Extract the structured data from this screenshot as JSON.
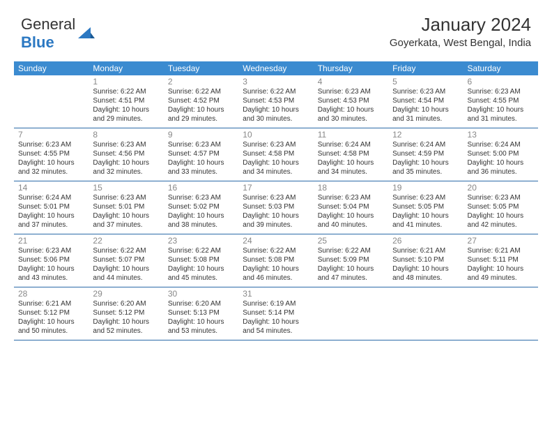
{
  "logo": {
    "text1": "General",
    "text2": "Blue"
  },
  "title": "January 2024",
  "location": "Goyerkata, West Bengal, India",
  "colors": {
    "header_bg": "#3b8bd0",
    "header_fg": "#ffffff",
    "row_border": "#2b6aa8",
    "daynum": "#888888",
    "body_text": "#333333",
    "logo_blue": "#2b78c2",
    "background": "#ffffff"
  },
  "weekdays": [
    "Sunday",
    "Monday",
    "Tuesday",
    "Wednesday",
    "Thursday",
    "Friday",
    "Saturday"
  ],
  "weeks": [
    [
      null,
      {
        "n": "1",
        "sr": "Sunrise: 6:22 AM",
        "ss": "Sunset: 4:51 PM",
        "dl": "Daylight: 10 hours and 29 minutes."
      },
      {
        "n": "2",
        "sr": "Sunrise: 6:22 AM",
        "ss": "Sunset: 4:52 PM",
        "dl": "Daylight: 10 hours and 29 minutes."
      },
      {
        "n": "3",
        "sr": "Sunrise: 6:22 AM",
        "ss": "Sunset: 4:53 PM",
        "dl": "Daylight: 10 hours and 30 minutes."
      },
      {
        "n": "4",
        "sr": "Sunrise: 6:23 AM",
        "ss": "Sunset: 4:53 PM",
        "dl": "Daylight: 10 hours and 30 minutes."
      },
      {
        "n": "5",
        "sr": "Sunrise: 6:23 AM",
        "ss": "Sunset: 4:54 PM",
        "dl": "Daylight: 10 hours and 31 minutes."
      },
      {
        "n": "6",
        "sr": "Sunrise: 6:23 AM",
        "ss": "Sunset: 4:55 PM",
        "dl": "Daylight: 10 hours and 31 minutes."
      }
    ],
    [
      {
        "n": "7",
        "sr": "Sunrise: 6:23 AM",
        "ss": "Sunset: 4:55 PM",
        "dl": "Daylight: 10 hours and 32 minutes."
      },
      {
        "n": "8",
        "sr": "Sunrise: 6:23 AM",
        "ss": "Sunset: 4:56 PM",
        "dl": "Daylight: 10 hours and 32 minutes."
      },
      {
        "n": "9",
        "sr": "Sunrise: 6:23 AM",
        "ss": "Sunset: 4:57 PM",
        "dl": "Daylight: 10 hours and 33 minutes."
      },
      {
        "n": "10",
        "sr": "Sunrise: 6:23 AM",
        "ss": "Sunset: 4:58 PM",
        "dl": "Daylight: 10 hours and 34 minutes."
      },
      {
        "n": "11",
        "sr": "Sunrise: 6:24 AM",
        "ss": "Sunset: 4:58 PM",
        "dl": "Daylight: 10 hours and 34 minutes."
      },
      {
        "n": "12",
        "sr": "Sunrise: 6:24 AM",
        "ss": "Sunset: 4:59 PM",
        "dl": "Daylight: 10 hours and 35 minutes."
      },
      {
        "n": "13",
        "sr": "Sunrise: 6:24 AM",
        "ss": "Sunset: 5:00 PM",
        "dl": "Daylight: 10 hours and 36 minutes."
      }
    ],
    [
      {
        "n": "14",
        "sr": "Sunrise: 6:24 AM",
        "ss": "Sunset: 5:01 PM",
        "dl": "Daylight: 10 hours and 37 minutes."
      },
      {
        "n": "15",
        "sr": "Sunrise: 6:23 AM",
        "ss": "Sunset: 5:01 PM",
        "dl": "Daylight: 10 hours and 37 minutes."
      },
      {
        "n": "16",
        "sr": "Sunrise: 6:23 AM",
        "ss": "Sunset: 5:02 PM",
        "dl": "Daylight: 10 hours and 38 minutes."
      },
      {
        "n": "17",
        "sr": "Sunrise: 6:23 AM",
        "ss": "Sunset: 5:03 PM",
        "dl": "Daylight: 10 hours and 39 minutes."
      },
      {
        "n": "18",
        "sr": "Sunrise: 6:23 AM",
        "ss": "Sunset: 5:04 PM",
        "dl": "Daylight: 10 hours and 40 minutes."
      },
      {
        "n": "19",
        "sr": "Sunrise: 6:23 AM",
        "ss": "Sunset: 5:05 PM",
        "dl": "Daylight: 10 hours and 41 minutes."
      },
      {
        "n": "20",
        "sr": "Sunrise: 6:23 AM",
        "ss": "Sunset: 5:05 PM",
        "dl": "Daylight: 10 hours and 42 minutes."
      }
    ],
    [
      {
        "n": "21",
        "sr": "Sunrise: 6:23 AM",
        "ss": "Sunset: 5:06 PM",
        "dl": "Daylight: 10 hours and 43 minutes."
      },
      {
        "n": "22",
        "sr": "Sunrise: 6:22 AM",
        "ss": "Sunset: 5:07 PM",
        "dl": "Daylight: 10 hours and 44 minutes."
      },
      {
        "n": "23",
        "sr": "Sunrise: 6:22 AM",
        "ss": "Sunset: 5:08 PM",
        "dl": "Daylight: 10 hours and 45 minutes."
      },
      {
        "n": "24",
        "sr": "Sunrise: 6:22 AM",
        "ss": "Sunset: 5:08 PM",
        "dl": "Daylight: 10 hours and 46 minutes."
      },
      {
        "n": "25",
        "sr": "Sunrise: 6:22 AM",
        "ss": "Sunset: 5:09 PM",
        "dl": "Daylight: 10 hours and 47 minutes."
      },
      {
        "n": "26",
        "sr": "Sunrise: 6:21 AM",
        "ss": "Sunset: 5:10 PM",
        "dl": "Daylight: 10 hours and 48 minutes."
      },
      {
        "n": "27",
        "sr": "Sunrise: 6:21 AM",
        "ss": "Sunset: 5:11 PM",
        "dl": "Daylight: 10 hours and 49 minutes."
      }
    ],
    [
      {
        "n": "28",
        "sr": "Sunrise: 6:21 AM",
        "ss": "Sunset: 5:12 PM",
        "dl": "Daylight: 10 hours and 50 minutes."
      },
      {
        "n": "29",
        "sr": "Sunrise: 6:20 AM",
        "ss": "Sunset: 5:12 PM",
        "dl": "Daylight: 10 hours and 52 minutes."
      },
      {
        "n": "30",
        "sr": "Sunrise: 6:20 AM",
        "ss": "Sunset: 5:13 PM",
        "dl": "Daylight: 10 hours and 53 minutes."
      },
      {
        "n": "31",
        "sr": "Sunrise: 6:19 AM",
        "ss": "Sunset: 5:14 PM",
        "dl": "Daylight: 10 hours and 54 minutes."
      },
      null,
      null,
      null
    ]
  ]
}
